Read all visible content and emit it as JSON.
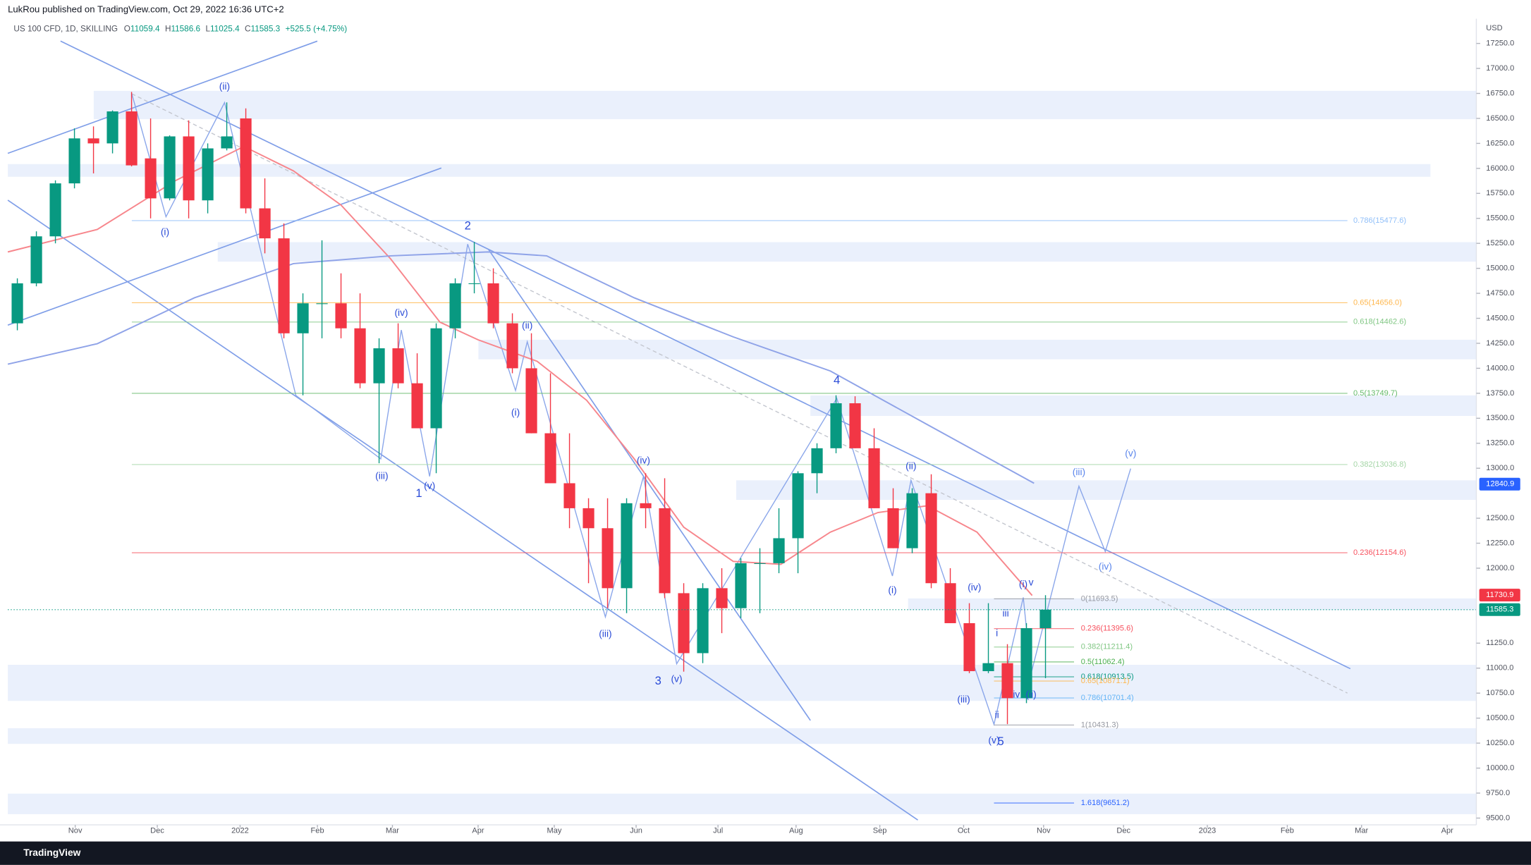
{
  "header": {
    "published": "LukRou published on TradingView.com, Oct 29, 2022 16:36 UTC+2",
    "symbol": "US 100 CFD, 1D, SKILLING",
    "ohlc": [
      {
        "prefix": "O",
        "value": "11059.4"
      },
      {
        "prefix": "H",
        "value": "11586.6"
      },
      {
        "prefix": "L",
        "value": "11025.4"
      },
      {
        "prefix": "C",
        "value": "11585.3"
      }
    ],
    "change": "+525.5 (+4.75%)"
  },
  "footer": {
    "brand": "TradingView"
  },
  "chart_data": {
    "type": "candlestick",
    "currency": "USD",
    "up_color": "#089981",
    "down_color": "#f23645",
    "x": [
      0.5,
      1.5,
      2.5,
      3.5,
      4.5,
      5.5,
      6.5,
      7.5,
      8.5,
      9.5,
      10.5,
      11.5,
      12.5,
      13.5,
      14.5,
      15.5,
      16.5,
      17.5,
      18.5,
      19.5,
      20.5,
      21.5,
      22.5,
      23.5,
      24.5,
      25.5,
      26.5,
      27.5,
      28.5,
      29.5,
      30.5,
      31.5,
      32.5,
      33.5,
      34.5,
      35.5,
      36.5,
      37.5,
      38.5,
      39.5,
      40.5,
      41.5,
      42.5,
      43.5,
      44.5,
      45.5,
      46.5,
      47.5,
      48.5,
      49.5,
      50.5,
      51.5,
      52.5,
      53.5,
      54.5
    ],
    "open": [
      14450,
      14850,
      15320,
      15850,
      16300,
      16250,
      16570,
      16100,
      15700,
      16320,
      15680,
      16200,
      16500,
      15600,
      15300,
      14350,
      14650,
      14650,
      14400,
      13850,
      14200,
      13850,
      13400,
      14400,
      14850,
      14850,
      14450,
      14000,
      13350,
      12850,
      12600,
      12400,
      11800,
      12650,
      12600,
      11750,
      11150,
      11800,
      11600,
      12050,
      12050,
      12300,
      12950,
      13200,
      13650,
      13200,
      12600,
      12200,
      12750,
      11850,
      11450,
      10970,
      11050,
      10700,
      11400
    ],
    "high": [
      14900,
      15370,
      15880,
      16400,
      16420,
      16580,
      16765,
      16500,
      16330,
      16480,
      16250,
      16660,
      16600,
      15900,
      15450,
      14750,
      15280,
      14950,
      14750,
      14300,
      14450,
      14150,
      14450,
      14900,
      15265,
      15000,
      14550,
      14350,
      13950,
      13350,
      12700,
      12700,
      12700,
      12950,
      12900,
      11850,
      11850,
      12000,
      12100,
      12200,
      12600,
      12970,
      13250,
      13730,
      13720,
      13400,
      12800,
      12800,
      12940,
      12000,
      11650,
      11650,
      11240,
      11450,
      11730
    ],
    "low": [
      14380,
      14820,
      15250,
      15800,
      15950,
      16150,
      16020,
      15500,
      15680,
      15500,
      15550,
      16180,
      15550,
      15150,
      14300,
      13730,
      14300,
      14300,
      13800,
      13050,
      13800,
      13400,
      12950,
      14300,
      14750,
      14400,
      13950,
      13350,
      12850,
      12400,
      11850,
      11600,
      11550,
      12400,
      11700,
      10965,
      11050,
      11350,
      11500,
      11550,
      11950,
      11950,
      12750,
      13150,
      13200,
      12600,
      12200,
      12150,
      11800,
      11450,
      10950,
      10950,
      10440,
      10650,
      10900
    ],
    "close": [
      14850,
      15320,
      15850,
      16300,
      16250,
      16570,
      16030,
      15700,
      16320,
      15680,
      16200,
      16320,
      15600,
      15300,
      14350,
      14650,
      14650,
      14400,
      13850,
      14200,
      13850,
      13400,
      14400,
      14850,
      14850,
      14450,
      14000,
      13350,
      12850,
      12600,
      12400,
      11800,
      12650,
      12600,
      11750,
      11150,
      11800,
      11600,
      12050,
      12050,
      12300,
      12950,
      13200,
      13650,
      13200,
      12600,
      12200,
      12750,
      11850,
      11450,
      10970,
      11050,
      10700,
      11400,
      11585.3
    ],
    "xlim": [
      0,
      77
    ],
    "xticks": [
      {
        "value": 3.54,
        "label": "Nov"
      },
      {
        "value": 7.85,
        "label": "Dec"
      },
      {
        "value": 12.2,
        "label": "2022"
      },
      {
        "value": 16.26,
        "label": "Feb"
      },
      {
        "value": 20.2,
        "label": "Mar"
      },
      {
        "value": 24.7,
        "label": "Apr"
      },
      {
        "value": 28.7,
        "label": "May"
      },
      {
        "value": 33.0,
        "label": "Jun"
      },
      {
        "value": 37.3,
        "label": "Jul"
      },
      {
        "value": 41.4,
        "label": "Aug"
      },
      {
        "value": 45.8,
        "label": "Sep"
      },
      {
        "value": 50.2,
        "label": "Oct"
      },
      {
        "value": 54.4,
        "label": "Nov"
      },
      {
        "value": 58.6,
        "label": "Dec"
      },
      {
        "value": 63.0,
        "label": "2023"
      },
      {
        "value": 67.2,
        "label": "Feb"
      },
      {
        "value": 71.1,
        "label": "Mar"
      },
      {
        "value": 75.6,
        "label": "Apr"
      }
    ],
    "ylim": [
      9430,
      17683
    ],
    "yticks": [
      {
        "value": 17250,
        "label": "17250.0"
      },
      {
        "value": 17000,
        "label": "17000.0"
      },
      {
        "value": 16750,
        "label": "16750.0"
      },
      {
        "value": 16500,
        "label": "16500.0"
      },
      {
        "value": 16250,
        "label": "16250.0"
      },
      {
        "value": 16000,
        "label": "16000.0"
      },
      {
        "value": 15750,
        "label": "15750.0"
      },
      {
        "value": 15500,
        "label": "15500.0"
      },
      {
        "value": 15250,
        "label": "15250.0"
      },
      {
        "value": 15000,
        "label": "15000.0"
      },
      {
        "value": 14750,
        "label": "14750.0"
      },
      {
        "value": 14500,
        "label": "14500.0"
      },
      {
        "value": 14250,
        "label": "14250.0"
      },
      {
        "value": 14000,
        "label": "14000.0"
      },
      {
        "value": 13750,
        "label": "13750.0"
      },
      {
        "value": 13500,
        "label": "13500.0"
      },
      {
        "value": 13250,
        "label": "13250.0"
      },
      {
        "value": 13000,
        "label": "13000.0"
      },
      {
        "value": 12500,
        "label": "12500.0"
      },
      {
        "value": 12250,
        "label": "12250.0"
      },
      {
        "value": 12000,
        "label": "12000.0"
      },
      {
        "value": 11250,
        "label": "11250.0"
      },
      {
        "value": 11000,
        "label": "11000.0"
      },
      {
        "value": 10750,
        "label": "10750.0"
      },
      {
        "value": 10500,
        "label": "10500.0"
      },
      {
        "value": 10250,
        "label": "10250.0"
      },
      {
        "value": 10000,
        "label": "10000.0"
      },
      {
        "value": 9750,
        "label": "9750.0"
      },
      {
        "value": 9500,
        "label": "9500.0"
      }
    ],
    "moving_averages": [
      {
        "color": "#f7868c",
        "x": [
          0,
          4.7,
          8.8,
          12.4,
          15,
          17.5,
          20.1,
          22.7,
          24.7,
          27.8,
          30.4,
          32.9,
          35.5,
          38.1,
          40.6,
          43.2,
          45.7,
          48.3,
          50.9,
          53.8
        ],
        "values": [
          15164,
          15389,
          15877,
          16219,
          15975,
          15633,
          15096,
          14461,
          14285,
          14070,
          13680,
          13094,
          12410,
          12068,
          12039,
          12361,
          12557,
          12625,
          12361,
          11727
        ]
      },
      {
        "color": "#8fa3e8",
        "x": [
          0,
          4.7,
          9.8,
          15,
          20.1,
          25.2,
          28.3,
          32.9,
          38.1,
          43.2,
          48.3,
          53.9
        ],
        "values": [
          14041,
          14246,
          14705,
          15047,
          15125,
          15164,
          15125,
          14705,
          14314,
          13973,
          13436,
          12850
        ]
      }
    ],
    "price_tags": [
      {
        "value": 12840.9,
        "label": "12840.9",
        "color": "#2962ff"
      },
      {
        "value": 11730.9,
        "label": "11730.9",
        "color": "#f23645"
      },
      {
        "value": 11585.3,
        "label": "11585.3",
        "color": "#089981"
      }
    ],
    "fibs": [
      {
        "levels": [
          {
            "value": 15477.6,
            "label": "0.786(15477.6)",
            "color": "#90bff9"
          },
          {
            "value": 14656.0,
            "label": "0.65(14656.0)",
            "color": "#ffb74d"
          },
          {
            "value": 14462.6,
            "label": "0.618(14462.6)",
            "color": "#81c784"
          },
          {
            "value": 13749.7,
            "label": "0.5(13749.7)",
            "color": "#66bb6a"
          },
          {
            "value": 13036.8,
            "label": "0.382(13036.8)",
            "color": "#a5d6a7"
          },
          {
            "value": 12154.6,
            "label": "0.236(12154.6)",
            "color": "#f7525f"
          }
        ]
      },
      {
        "levels": [
          {
            "value": 11693.5,
            "label": "0(11693.5)",
            "color": "#9598a1"
          },
          {
            "value": 11395.6,
            "label": "0.236(11395.6)",
            "color": "#f7525f"
          },
          {
            "value": 11211.4,
            "label": "0.382(11211.4)",
            "color": "#81c784"
          },
          {
            "value": 11062.4,
            "label": "0.5(11062.4)",
            "color": "#4caf50"
          },
          {
            "value": 10913.5,
            "label": "0.618(10913.5)",
            "color": "#089981"
          },
          {
            "value": 10871.1,
            "label": "0.65(10871.1)",
            "color": "#ffb74d"
          },
          {
            "value": 10701.4,
            "label": "0.786(10701.4)",
            "color": "#64b5f6"
          },
          {
            "value": 10431.3,
            "label": "1(10431.3)",
            "color": "#9598a1"
          },
          {
            "value": 9651.2,
            "label": "1.618(9651.2)",
            "color": "#2962ff"
          }
        ]
      }
    ],
    "annotations": [
      "(i)",
      "(ii)",
      "(iii)",
      "(iv)",
      "(v)",
      "1",
      "2",
      "(i)",
      "(ii)",
      "(iii)",
      "(iv)",
      "(v)",
      "3",
      "4",
      "(i)",
      "(ii)",
      "(iii)",
      "(iv)",
      "(v)",
      "5",
      "i",
      "ii",
      "iii",
      "iv",
      "v",
      "(i)",
      "(ii)",
      "(iii)",
      "(iv)",
      "(v)"
    ]
  }
}
